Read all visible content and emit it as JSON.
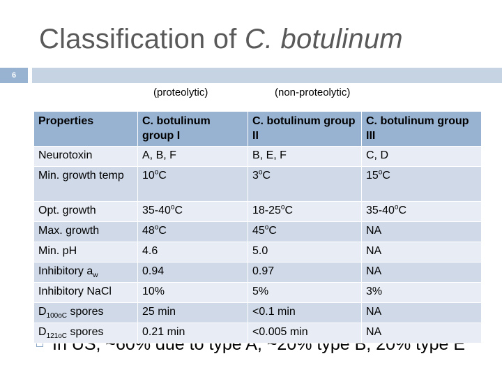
{
  "slide": {
    "title_prefix": "Classification of ",
    "title_italic": "C. botulinum",
    "number": "6",
    "subtitle_left": "(proteolytic)",
    "subtitle_right": "(non-proteolytic)"
  },
  "table": {
    "headers": [
      "Properties",
      "C. botulinum group I",
      "C. botulinum group II",
      "C. botulinum group III"
    ],
    "rows": [
      {
        "prop": "Neurotoxin",
        "g1": "A, B, F",
        "g2": "B, E, F",
        "g3": "C, D"
      },
      {
        "prop": "Min. growth temp",
        "g1": "10oC",
        "g2": "3oC",
        "g3": "15oC"
      },
      {
        "prop": "Opt. growth",
        "g1": "35-40oC",
        "g2": "18-25oC",
        "g3": "35-40oC"
      },
      {
        "prop": "Max. growth",
        "g1": "48oC",
        "g2": "45oC",
        "g3": "NA"
      },
      {
        "prop": "Min. pH",
        "g1": "4.6",
        "g2": "5.0",
        "g3": "NA"
      },
      {
        "prop": "Inhibitory aw",
        "g1": "0.94",
        "g2": "0.97",
        "g3": "NA"
      },
      {
        "prop": "Inhibitory NaCl",
        "g1": "10%",
        "g2": "5%",
        "g3": "3%"
      },
      {
        "prop": "D100oC spores",
        "g1": "25 min",
        "g2": "<0.1 min",
        "g3": "NA"
      },
      {
        "prop": "D121oC spores",
        "g1": "0.21 min",
        "g2": "<0.005 min",
        "g3": "NA"
      }
    ]
  },
  "bullet": {
    "text": "In US, ~60% due to type A, ~20% type B, 20% type E"
  }
}
